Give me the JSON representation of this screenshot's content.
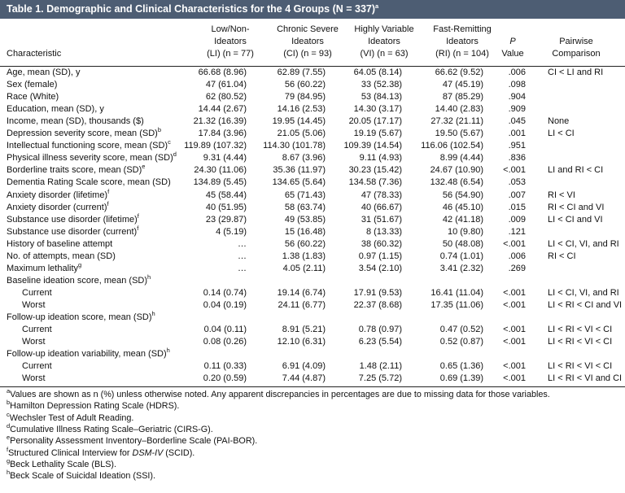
{
  "title": {
    "text": "Table 1. Demographic and Clinical Characteristics for the 4 Groups (N = 337)",
    "sup": "a"
  },
  "table": {
    "label_header": "Characteristic",
    "columns": [
      [
        "Low/Non-",
        "Ideators",
        "(LI) (n = 77)"
      ],
      [
        "Chronic Severe",
        "Ideators",
        "(CI) (n = 93)"
      ],
      [
        "Highly Variable",
        "Ideators",
        "(VI) (n = 63)"
      ],
      [
        "Fast-Remitting",
        "Ideators",
        "(RI) (n = 104)"
      ],
      [
        "P",
        "Value"
      ],
      [
        "Pairwise",
        "Comparison"
      ]
    ],
    "rows": [
      {
        "label": "Age, mean (SD), y",
        "cells": [
          "66.68 (8.96)",
          "62.89 (7.55)",
          "64.05 (8.14)",
          "66.62 (9.52)",
          ".006",
          "CI < LI and RI"
        ]
      },
      {
        "label": "Sex (female)",
        "cells": [
          "47 (61.04)",
          "56 (60.22)",
          "33 (52.38)",
          "47 (45.19)",
          ".098",
          null
        ]
      },
      {
        "label": "Race (White)",
        "cells": [
          "62 (80.52)",
          "79 (84.95)",
          "53 (84.13)",
          "87 (85.29)",
          ".904",
          null
        ]
      },
      {
        "label": "Education, mean (SD), y",
        "cells": [
          "14.44 (2.67)",
          "14.16 (2.53)",
          "14.30 (3.17)",
          "14.40 (2.83)",
          ".909",
          null
        ]
      },
      {
        "label": "Income, mean (SD), thousands ($)",
        "cells": [
          "21.32 (16.39)",
          "19.95 (14.45)",
          "20.05 (17.17)",
          "27.32 (21.11)",
          ".045",
          "None"
        ]
      },
      {
        "label": "Depression severity score, mean (SD)",
        "sup": "b",
        "cells": [
          "17.84 (3.96)",
          "21.05 (5.06)",
          "19.19 (5.67)",
          "19.50 (5.67)",
          ".001",
          "LI < CI"
        ]
      },
      {
        "label": "Intellectual functioning score, mean (SD)",
        "sup": "c",
        "cells": [
          "119.89 (107.32)",
          "114.30 (101.78)",
          "109.39 (14.54)",
          "116.06 (102.54)",
          ".951",
          null
        ]
      },
      {
        "label": "Physical illness severity score, mean (SD)",
        "sup": "d",
        "cells": [
          "9.31 (4.44)",
          "8.67 (3.96)",
          "9.11 (4.93)",
          "8.99 (4.44)",
          ".836",
          null
        ]
      },
      {
        "label": "Borderline traits score, mean (SD)",
        "sup": "e",
        "cells": [
          "24.30 (11.06)",
          "35.36 (11.97)",
          "30.23 (15.42)",
          "24.67 (10.90)",
          "<.001",
          "LI and RI < CI"
        ]
      },
      {
        "label": "Dementia Rating Scale score, mean (SD)",
        "cells": [
          "134.89 (5.45)",
          "134.65 (5.64)",
          "134.58 (7.36)",
          "132.48 (6.54)",
          ".053",
          null
        ]
      },
      {
        "label": "Anxiety disorder (lifetime)",
        "sup": "f",
        "cells": [
          "45 (58.44)",
          "65 (71.43)",
          "47 (78.33)",
          "56 (54.90)",
          ".007",
          "RI < VI"
        ]
      },
      {
        "label": "Anxiety disorder (current)",
        "sup": "f",
        "cells": [
          "40 (51.95)",
          "58 (63.74)",
          "40 (66.67)",
          "46 (45.10)",
          ".015",
          "RI < CI and VI"
        ]
      },
      {
        "label": "Substance use disorder (lifetime)",
        "sup": "f",
        "cells": [
          "23 (29.87)",
          "49 (53.85)",
          "31 (51.67)",
          "42 (41.18)",
          ".009",
          "LI < CI and VI"
        ]
      },
      {
        "label": "Substance use disorder (current)",
        "sup": "f",
        "cells": [
          "4 (5.19)",
          "15 (16.48)",
          "8 (13.33)",
          "10 (9.80)",
          ".121",
          null
        ]
      },
      {
        "label": "History of baseline attempt",
        "cells": [
          "…",
          "56 (60.22)",
          "38 (60.32)",
          "50 (48.08)",
          "<.001",
          "LI < CI, VI, and RI"
        ]
      },
      {
        "label": "No. of attempts, mean (SD)",
        "cells": [
          "…",
          "1.38 (1.83)",
          "0.97 (1.15)",
          "0.74 (1.01)",
          ".006",
          "RI < CI"
        ]
      },
      {
        "label": "Maximum lethality",
        "sup": "g",
        "cells": [
          "…",
          "4.05 (2.11)",
          "3.54 (2.10)",
          "3.41 (2.32)",
          ".269",
          null
        ]
      },
      {
        "label": "Baseline ideation score, mean (SD)",
        "sup": "h",
        "subrows": [
          {
            "label": "Current",
            "cells": [
              "0.14 (0.74)",
              "19.14 (6.74)",
              "17.91 (9.53)",
              "16.41 (11.04)",
              "<.001",
              "LI < CI, VI, and RI"
            ]
          },
          {
            "label": "Worst",
            "cells": [
              "0.04 (0.19)",
              "24.11 (6.77)",
              "22.37 (8.68)",
              "17.35 (11.06)",
              "<.001",
              "LI < RI < CI and VI"
            ]
          }
        ]
      },
      {
        "label": "Follow-up ideation score, mean (SD)",
        "sup": "h",
        "subrows": [
          {
            "label": "Current",
            "cells": [
              "0.04 (0.11)",
              "8.91 (5.21)",
              "0.78 (0.97)",
              "0.47 (0.52)",
              "<.001",
              "LI < RI < VI < CI"
            ]
          },
          {
            "label": "Worst",
            "cells": [
              "0.08 (0.26)",
              "12.10 (6.31)",
              "6.23 (5.54)",
              "0.52 (0.87)",
              "<.001",
              "LI < RI < VI < CI"
            ]
          }
        ]
      },
      {
        "label": "Follow-up ideation variability, mean (SD)",
        "sup": "h",
        "subrows": [
          {
            "label": "Current",
            "cells": [
              "0.11 (0.33)",
              "6.91 (4.09)",
              "1.48 (2.11)",
              "0.65 (1.36)",
              "<.001",
              "LI < RI < VI < CI"
            ]
          },
          {
            "label": "Worst",
            "cells": [
              "0.20 (0.59)",
              "7.44 (4.87)",
              "7.25 (5.72)",
              "0.69 (1.39)",
              "<.001",
              "LI < RI < VI and CI"
            ]
          }
        ]
      }
    ]
  },
  "footnotes": [
    {
      "mark": "a",
      "text": "Values are shown as n (%) unless otherwise noted. Any apparent discrepancies in percentages are due to missing data for those variables."
    },
    {
      "mark": "b",
      "text": "Hamilton Depression Rating Scale (HDRS)."
    },
    {
      "mark": "c",
      "text": "Wechsler Test of Adult Reading."
    },
    {
      "mark": "d",
      "text": "Cumulative Illness Rating Scale–Geriatric (CIRS-G)."
    },
    {
      "mark": "e",
      "text": "Personality Assessment Inventory–Borderline Scale (PAI-BOR)."
    },
    {
      "mark": "f",
      "text": "Structured Clinical Interview for ",
      "em": "DSM-IV",
      "after": " (SCID)."
    },
    {
      "mark": "g",
      "text": "Beck Lethality Scale (BLS)."
    },
    {
      "mark": "h",
      "text": "Beck Scale of Suicidal Ideation (SSI)."
    }
  ]
}
